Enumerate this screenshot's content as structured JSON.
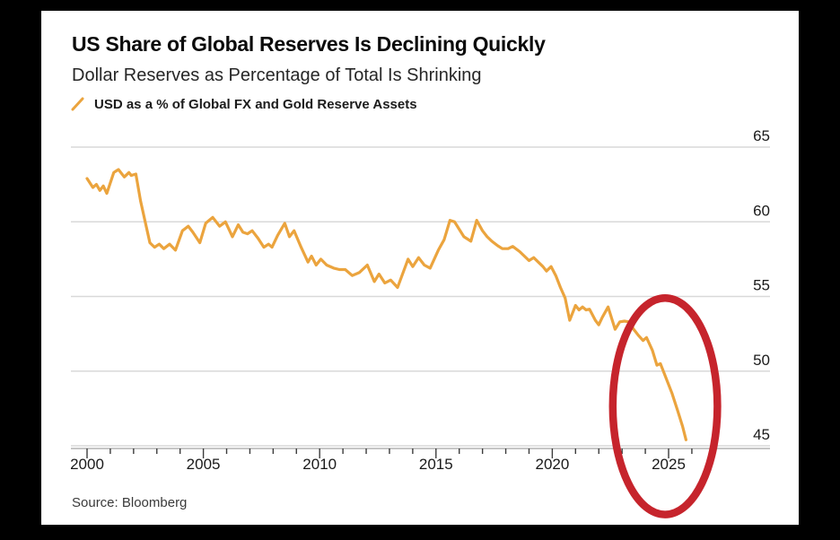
{
  "frame": {
    "background": "#000000",
    "card_background": "#ffffff"
  },
  "header": {
    "title": "US Share of Global Reserves Is Declining Quickly",
    "subtitle": "Dollar Reserves as Percentage of Total Is Shrinking"
  },
  "legend": {
    "label": "USD as a % of Global FX and Gold Reserve Assets",
    "series_color": "#eba43e"
  },
  "source": {
    "text": "Source: Bloomberg"
  },
  "colors": {
    "line": "#eba43e",
    "annotation_red": "#c6242c",
    "gridline": "#d9d9d9",
    "axis": "#b3b3b3",
    "tick": "#3c3c3c",
    "label": "#1a1a1a"
  },
  "chart_data": {
    "type": "line",
    "title": "US Share of Global Reserves Is Declining Quickly",
    "subtitle": "Dollar Reserves as Percentage of Total Is Shrinking",
    "xlabel": "",
    "ylabel": "",
    "grid": "horizontal",
    "y_axis_side": "right",
    "legend_position": "top-left",
    "x_ticks": [
      2000,
      2005,
      2010,
      2015,
      2020,
      2025
    ],
    "x_minor_tick_step": 1,
    "xlim": [
      2000,
      2027
    ],
    "y_ticks": [
      65,
      60,
      55,
      50,
      45
    ],
    "ylim": [
      45,
      65
    ],
    "series": [
      {
        "name": "USD as a % of Global FX and Gold Reserve Assets",
        "color": "#eba43e",
        "x": [
          2000.0,
          2000.25,
          2000.4,
          2000.55,
          2000.7,
          2000.85,
          2001.15,
          2001.35,
          2001.6,
          2001.8,
          2001.9,
          2002.1,
          2002.3,
          2002.5,
          2002.7,
          2002.9,
          2003.1,
          2003.3,
          2003.55,
          2003.8,
          2004.1,
          2004.35,
          2004.55,
          2004.85,
          2005.1,
          2005.4,
          2005.7,
          2005.95,
          2006.25,
          2006.5,
          2006.7,
          2006.9,
          2007.1,
          2007.35,
          2007.6,
          2007.8,
          2007.95,
          2008.2,
          2008.5,
          2008.7,
          2008.9,
          2009.2,
          2009.5,
          2009.65,
          2009.85,
          2010.05,
          2010.3,
          2010.6,
          2010.85,
          2011.1,
          2011.4,
          2011.7,
          2012.05,
          2012.35,
          2012.55,
          2012.8,
          2013.05,
          2013.35,
          2013.8,
          2014.0,
          2014.25,
          2014.5,
          2014.75,
          2015.1,
          2015.35,
          2015.6,
          2015.8,
          2016.2,
          2016.5,
          2016.75,
          2017.0,
          2017.2,
          2017.4,
          2017.65,
          2017.85,
          2018.1,
          2018.3,
          2018.6,
          2018.8,
          2019.0,
          2019.2,
          2019.4,
          2019.6,
          2019.75,
          2019.95,
          2020.15,
          2020.35,
          2020.55,
          2020.75,
          2021.0,
          2021.15,
          2021.3,
          2021.45,
          2021.6,
          2021.85,
          2022.0,
          2022.15,
          2022.4,
          2022.7,
          2022.9,
          2023.1,
          2023.3,
          2023.5,
          2023.7,
          2023.9,
          2024.05,
          2024.3,
          2024.5,
          2024.65,
          2024.9,
          2025.15,
          2025.4,
          2025.6,
          2025.75
        ],
        "values": [
          62.9,
          62.3,
          62.5,
          62.1,
          62.4,
          61.9,
          63.3,
          63.5,
          63.0,
          63.3,
          63.1,
          63.2,
          61.4,
          60.0,
          58.6,
          58.3,
          58.5,
          58.2,
          58.5,
          58.1,
          59.4,
          59.7,
          59.3,
          58.6,
          59.9,
          60.3,
          59.7,
          60.0,
          59.0,
          59.8,
          59.3,
          59.2,
          59.4,
          58.9,
          58.3,
          58.5,
          58.3,
          59.1,
          59.9,
          59.0,
          59.4,
          58.3,
          57.3,
          57.7,
          57.1,
          57.5,
          57.1,
          56.9,
          56.8,
          56.8,
          56.4,
          56.6,
          57.1,
          56.0,
          56.5,
          55.9,
          56.1,
          55.6,
          57.5,
          57.0,
          57.6,
          57.1,
          56.9,
          58.1,
          58.8,
          60.1,
          60.0,
          59.0,
          58.7,
          60.1,
          59.4,
          59.0,
          58.7,
          58.4,
          58.2,
          58.2,
          58.35,
          58.0,
          57.7,
          57.4,
          57.6,
          57.3,
          57.0,
          56.7,
          57.0,
          56.4,
          55.6,
          54.9,
          53.4,
          54.4,
          54.1,
          54.3,
          54.1,
          54.15,
          53.4,
          53.1,
          53.6,
          54.3,
          52.8,
          53.3,
          53.35,
          53.3,
          52.8,
          52.4,
          52.05,
          52.25,
          51.4,
          50.4,
          50.5,
          49.5,
          48.5,
          47.3,
          46.3,
          45.4
        ]
      }
    ],
    "annotation": {
      "shape": "ellipse",
      "description": "hand-drawn red ellipse circling the sharp post-2023 decline",
      "color": "#c6242c",
      "stroke_width": 8.5,
      "x_range": [
        2022.6,
        2027.1
      ],
      "y_range": [
        40.4,
        54.9
      ]
    }
  }
}
